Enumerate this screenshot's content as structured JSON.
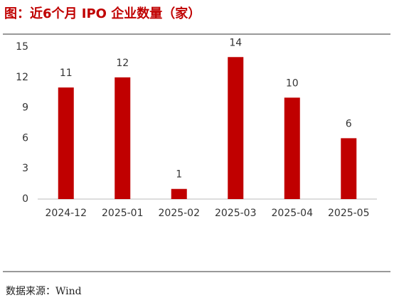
{
  "chart_data": {
    "type": "bar",
    "title": "图：近6个月 IPO 企业数量（家）",
    "categories": [
      "2024-12",
      "2025-01",
      "2025-02",
      "2025-03",
      "2025-04",
      "2025-05"
    ],
    "values": [
      11,
      12,
      1,
      14,
      10,
      6
    ],
    "color": "#c00000",
    "ylim": [
      0,
      15
    ],
    "yticks": [
      0,
      3,
      6,
      9,
      12,
      15
    ],
    "grid": false,
    "source": "数据来源：Wind"
  }
}
